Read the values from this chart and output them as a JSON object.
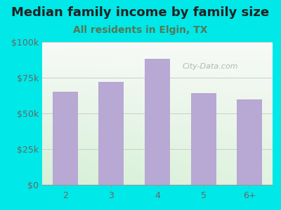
{
  "title": "Median family income by family size",
  "subtitle": "All residents in Elgin, TX",
  "categories": [
    "2",
    "3",
    "4",
    "5",
    "6+"
  ],
  "values": [
    65000,
    72000,
    88000,
    64000,
    60000
  ],
  "bar_color": "#b8a8d4",
  "background_outer": "#00e8e8",
  "title_color": "#222222",
  "subtitle_color": "#557755",
  "tick_color": "#666666",
  "grid_color": "#cccccc",
  "ylim": [
    0,
    100000
  ],
  "yticks": [
    0,
    25000,
    50000,
    75000,
    100000
  ],
  "ytick_labels": [
    "$0",
    "$25k",
    "$50k",
    "$75k",
    "$100k"
  ],
  "watermark": "City-Data.com",
  "title_fontsize": 13,
  "subtitle_fontsize": 10,
  "tick_fontsize": 9
}
